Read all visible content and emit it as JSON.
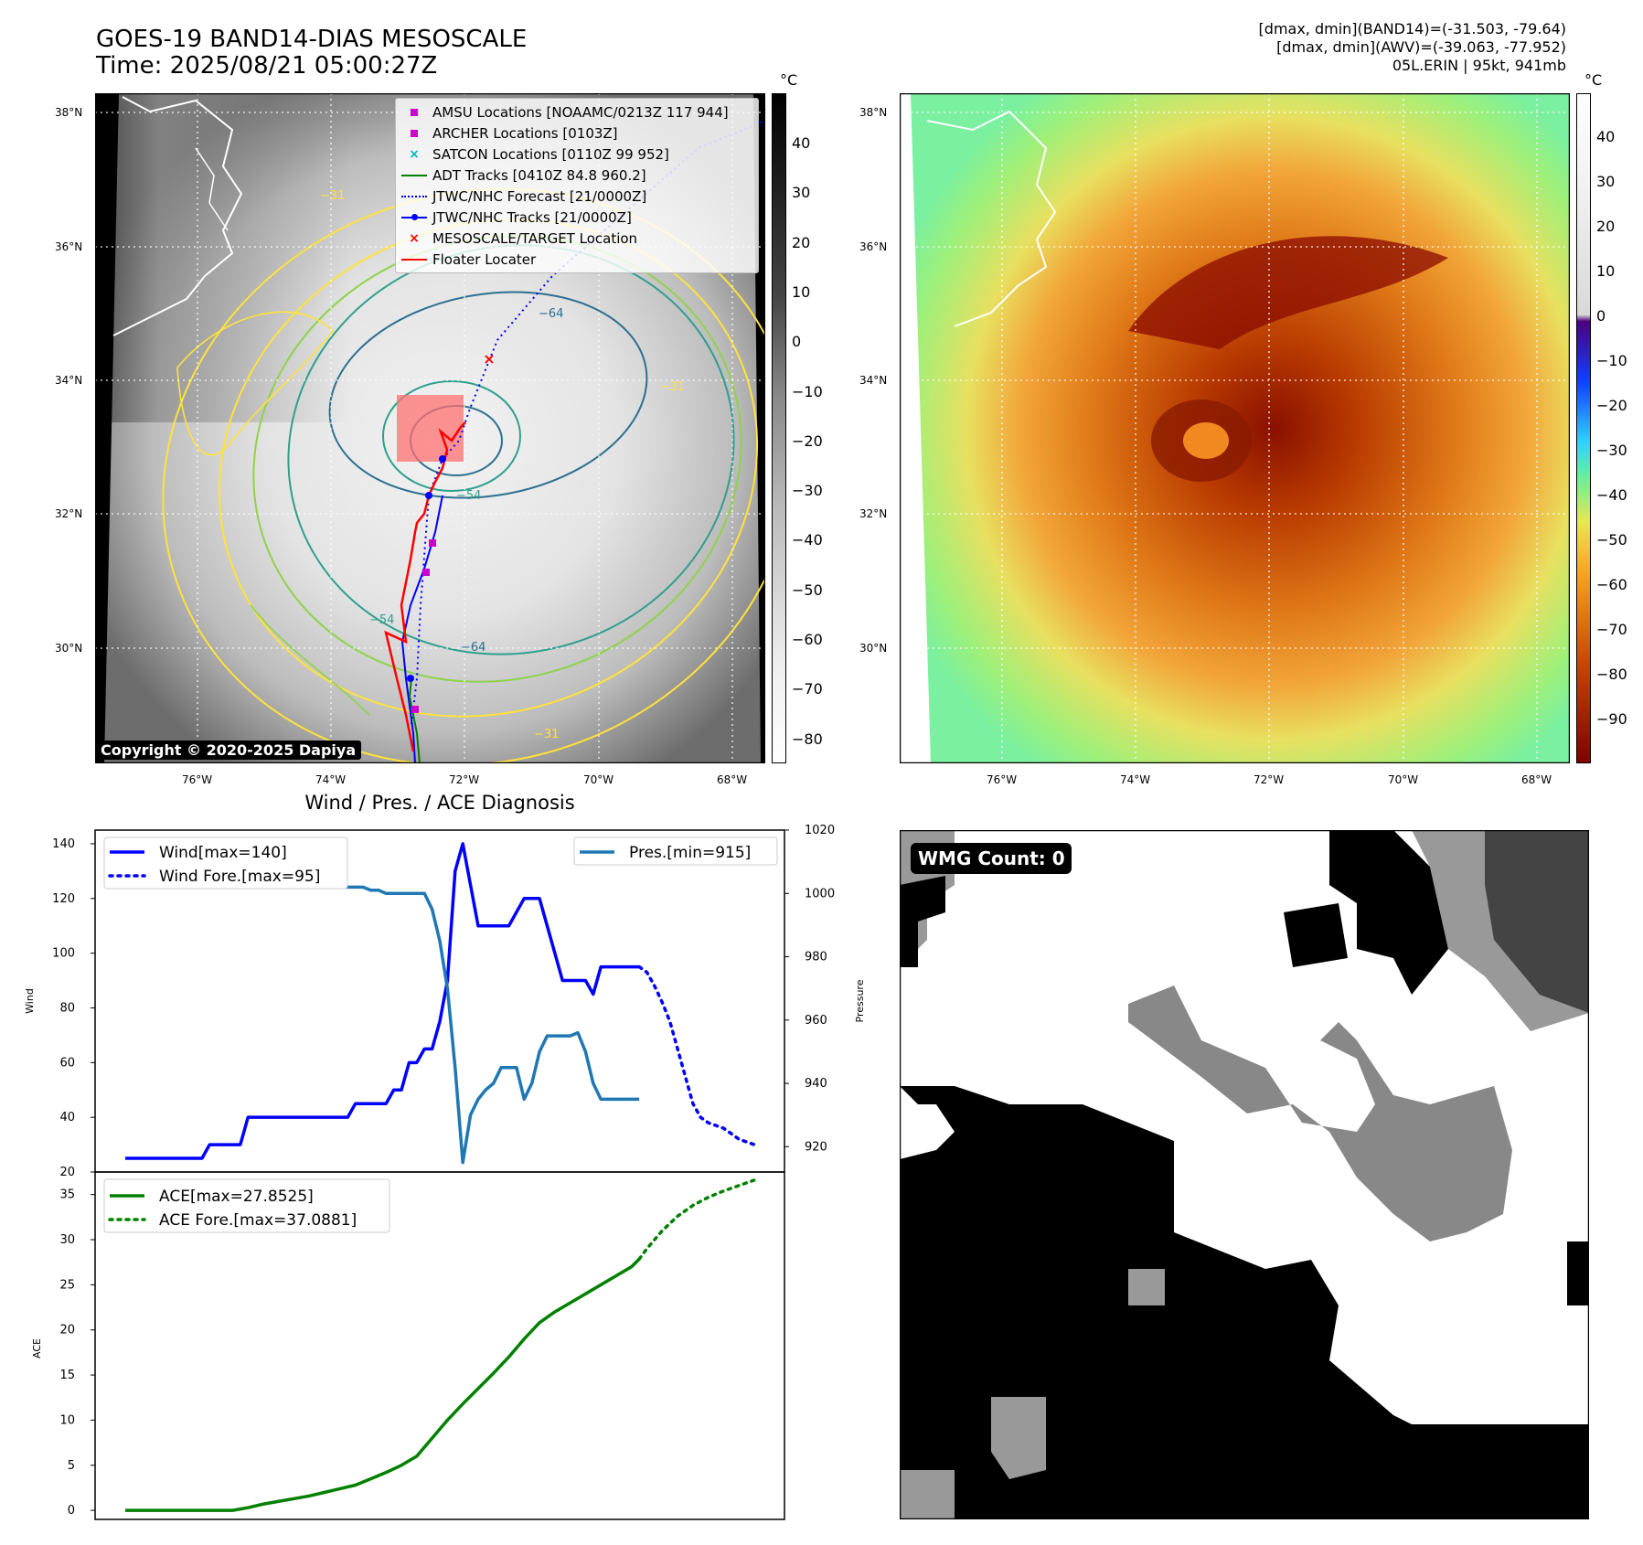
{
  "panel_ir": {
    "title": "GOES-19 BAND14-DIAS MESOSCALE",
    "time": "Time: 2025/08/21 05:00:27Z",
    "lat_ticks": [
      "38°N",
      "36°N",
      "34°N",
      "32°N",
      "30°N"
    ],
    "lon_ticks": [
      "76°W",
      "74°W",
      "72°W",
      "70°W",
      "68°W"
    ],
    "cbar_unit": "°C",
    "cbar_ticks": [
      "40",
      "30",
      "20",
      "10",
      "0",
      "−10",
      "−20",
      "−30",
      "−40",
      "−50",
      "−60",
      "−70",
      "−80"
    ],
    "copyright": "Copyright © 2020-2025 Dapiya",
    "contour_labels": [
      "−31",
      "−54",
      "−64",
      "−31",
      "−54",
      "−64",
      "−31"
    ],
    "legend": [
      {
        "label": "AMSU Locations [NOAAMC/0213Z 117 944]",
        "color": "#cc00cc",
        "symbol": "square-marker"
      },
      {
        "label": "ARCHER Locations [0103Z]",
        "color": "#cc00cc",
        "symbol": "square-marker"
      },
      {
        "label": "SATCON Locations [0110Z 99 952]",
        "color": "#00bbbb",
        "symbol": "x-marker"
      },
      {
        "label": "ADT Tracks [0410Z 84.8 960.2]",
        "color": "#008000",
        "symbol": "line"
      },
      {
        "label": "JTWC/NHC Forecast [21/0000Z]",
        "color": "#0000ff",
        "symbol": "dotted-line"
      },
      {
        "label": "JTWC/NHC Tracks [21/0000Z]",
        "color": "#0000ff",
        "symbol": "line-dot"
      },
      {
        "label": "MESOSCALE/TARGET Location",
        "color": "#ff0000",
        "symbol": "x-marker"
      },
      {
        "label": "Floater Locater",
        "color": "#ff0000",
        "symbol": "line"
      }
    ]
  },
  "panel_awv": {
    "info_line1": "[dmax, dmin](BAND14)=(-31.503, -79.64)",
    "info_line2": "[dmax, dmin](AWV)=(-39.063, -77.952)",
    "info_line3": "05L.ERIN | 95kt, 941mb",
    "lat_ticks": [
      "38°N",
      "36°N",
      "34°N",
      "32°N",
      "30°N"
    ],
    "lon_ticks": [
      "76°W",
      "74°W",
      "72°W",
      "70°W",
      "68°W"
    ],
    "cbar_unit": "°C",
    "cbar_ticks": [
      "40",
      "30",
      "20",
      "10",
      "0",
      "−10",
      "−20",
      "−30",
      "−40",
      "−50",
      "−60",
      "−70",
      "−80",
      "−90"
    ]
  },
  "panel_wmg": {
    "label": "WMG Count: 0"
  },
  "chart_data": [
    {
      "type": "line",
      "title": "Wind / Pres. / ACE Diagnosis",
      "ylabel": "Wind",
      "ylabel2": "Pressure",
      "ylim": [
        20,
        145
      ],
      "ylim2": [
        912,
        1020
      ],
      "yticks": [
        20,
        40,
        60,
        80,
        100,
        120,
        140
      ],
      "yticks2": [
        920,
        940,
        960,
        980,
        1000,
        1020
      ],
      "x": [
        0,
        1,
        2,
        3,
        4,
        5,
        6,
        7,
        8,
        9,
        10,
        11,
        12,
        13,
        14,
        15,
        16,
        17,
        18,
        19,
        20,
        21,
        22,
        23,
        24,
        25,
        26,
        27,
        28,
        29,
        30,
        31,
        32,
        33,
        34,
        35,
        36,
        37,
        38,
        39,
        40,
        41,
        42,
        43,
        44,
        45,
        46,
        47,
        48,
        49,
        50,
        51,
        52,
        53,
        54,
        55,
        56,
        57,
        58,
        59,
        60,
        61,
        62,
        63,
        64,
        65,
        66,
        67,
        68,
        69,
        70,
        71,
        72,
        73,
        74,
        75,
        76,
        77,
        78,
        79,
        80,
        81,
        82
      ],
      "series": [
        {
          "name": "Wind[max=140]",
          "color": "#0000ff",
          "style": "solid",
          "x": [
            0,
            1,
            2,
            3,
            4,
            5,
            6,
            7,
            8,
            9,
            10,
            11,
            12,
            13,
            14,
            15,
            16,
            17,
            18,
            19,
            20,
            21,
            22,
            23,
            24,
            25,
            26,
            27,
            28,
            29,
            30,
            31,
            32,
            33,
            34,
            35,
            36,
            37,
            38,
            39,
            40,
            41,
            42,
            43,
            44,
            45,
            46,
            47,
            48,
            49,
            50,
            51,
            52,
            53,
            54,
            55,
            56,
            57,
            58,
            59,
            60,
            61,
            62,
            63,
            64,
            65,
            66,
            67
          ],
          "values": [
            25,
            25,
            25,
            25,
            25,
            25,
            25,
            25,
            25,
            25,
            25,
            30,
            30,
            30,
            30,
            30,
            40,
            40,
            40,
            40,
            40,
            40,
            40,
            40,
            40,
            40,
            40,
            40,
            40,
            40,
            45,
            45,
            45,
            45,
            45,
            50,
            50,
            60,
            60,
            65,
            65,
            75,
            90,
            130,
            140,
            125,
            110,
            110,
            110,
            110,
            110,
            115,
            120,
            120,
            120,
            110,
            100,
            90,
            90,
            90,
            90,
            85,
            95,
            95,
            95,
            95,
            95,
            95
          ]
        },
        {
          "name": "Wind Fore.[max=95]",
          "color": "#0000ff",
          "style": "dotted",
          "x": [
            67,
            68,
            69,
            70,
            71,
            72,
            73,
            74,
            75,
            76,
            77,
            78,
            79,
            80,
            81,
            82
          ],
          "values": [
            95,
            93,
            88,
            82,
            75,
            65,
            55,
            45,
            40,
            38,
            37,
            36,
            34,
            32,
            31,
            30
          ]
        },
        {
          "name": "Pres.[min=915]",
          "color": "#1f77b4",
          "style": "solid",
          "axis": "right",
          "x": [
            0,
            1,
            2,
            3,
            4,
            5,
            6,
            7,
            8,
            9,
            10,
            11,
            12,
            13,
            14,
            15,
            16,
            17,
            18,
            19,
            20,
            21,
            22,
            23,
            24,
            25,
            26,
            27,
            28,
            29,
            30,
            31,
            32,
            33,
            34,
            35,
            36,
            37,
            38,
            39,
            40,
            41,
            42,
            43,
            44,
            45,
            46,
            47,
            48,
            49,
            50,
            51,
            52,
            53,
            54,
            55,
            56,
            57,
            58,
            59,
            60,
            61,
            62,
            63,
            64,
            65,
            66,
            67
          ],
          "values": [
            1015,
            1015,
            1012,
            1011,
            1010,
            1010,
            1009,
            1009,
            1008,
            1008,
            1008,
            1007,
            1007,
            1007,
            1007,
            1006,
            1006,
            1006,
            1005,
            1005,
            1005,
            1005,
            1004,
            1004,
            1004,
            1004,
            1003,
            1003,
            1002,
            1002,
            1002,
            1002,
            1001,
            1001,
            1000,
            1000,
            1000,
            1000,
            1000,
            1000,
            995,
            985,
            970,
            945,
            915,
            930,
            935,
            938,
            940,
            945,
            945,
            945,
            935,
            940,
            950,
            955,
            955,
            955,
            955,
            956,
            950,
            940,
            935,
            935,
            935,
            935,
            935,
            935
          ]
        }
      ]
    },
    {
      "type": "line",
      "ylabel": "ACE",
      "ylim": [
        -1,
        37.5
      ],
      "yticks": [
        0,
        5,
        10,
        15,
        20,
        25,
        30,
        35
      ],
      "series": [
        {
          "name": "ACE[max=27.8525]",
          "color": "#008000",
          "style": "solid",
          "x": [
            0,
            5,
            10,
            11,
            12,
            14,
            16,
            18,
            20,
            22,
            24,
            26,
            28,
            30,
            32,
            34,
            36,
            38,
            40,
            42,
            44,
            46,
            48,
            50,
            52,
            54,
            56,
            58,
            60,
            62,
            64,
            66,
            67
          ],
          "values": [
            0,
            0,
            0,
            0,
            0,
            0,
            0.3,
            0.7,
            1.0,
            1.3,
            1.6,
            2.0,
            2.4,
            2.8,
            3.5,
            4.2,
            5.0,
            6.0,
            8.0,
            10,
            11.8,
            13.5,
            15.2,
            17.0,
            19.0,
            20.8,
            22.0,
            23.0,
            24.0,
            25.0,
            26.0,
            27.0,
            27.85
          ]
        },
        {
          "name": "ACE Fore.[max=37.0881]",
          "color": "#008000",
          "style": "dotted",
          "x": [
            67,
            68,
            70,
            72,
            74,
            76,
            78,
            80,
            82
          ],
          "values": [
            27.85,
            29.0,
            31.0,
            32.6,
            33.8,
            34.7,
            35.4,
            36.0,
            36.6
          ]
        }
      ]
    }
  ]
}
